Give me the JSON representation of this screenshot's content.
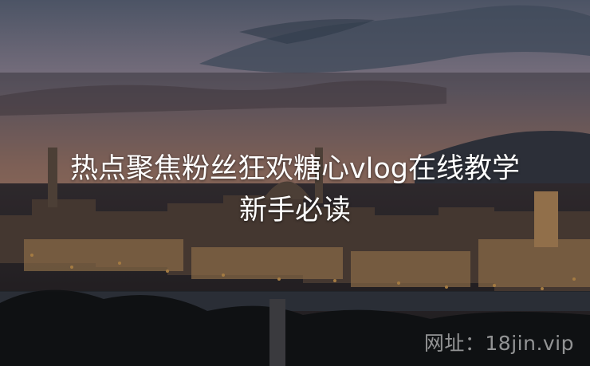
{
  "image": {
    "description": "Dusk cityscape photo of Florence with cathedral dome and city lights, used as article cover",
    "title_line1": "热点聚焦粉丝狂欢糖心vlog在线教学",
    "title_line2": "新手必读",
    "watermark": "网址：18jin.vip"
  },
  "colors": {
    "sky_top": "#5b6070",
    "sky_glow": "#c98f78",
    "city_light": "#f2b35a"
  }
}
